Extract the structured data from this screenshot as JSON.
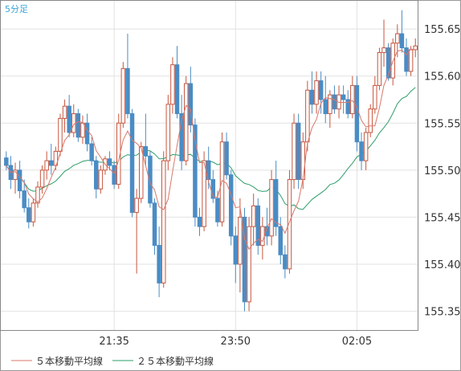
{
  "chart_data": {
    "type": "candlestick",
    "period_label": "5分足",
    "ylim": [
      155.33,
      155.68
    ],
    "y_ticks": [
      "155.35",
      "155.40",
      "155.45",
      "155.50",
      "155.55",
      "155.60",
      "155.65"
    ],
    "x_tick_labels": [
      "21:35",
      "23:50",
      "02:05"
    ],
    "x_tick_bar_index": [
      24,
      51,
      78
    ],
    "up_color": "#c8563e",
    "down_color": "#4a8cc4",
    "grid": true,
    "legend_position": "bottom",
    "series": [
      {
        "name": "５本移動平均線",
        "color": "#d9776a",
        "period": 5
      },
      {
        "name": "２５本移動平均線",
        "color": "#2e9e6a",
        "period": 25
      }
    ],
    "candles": [
      [
        155.513,
        155.52,
        155.5,
        155.505
      ],
      [
        155.505,
        155.515,
        155.48,
        155.49
      ],
      [
        155.49,
        155.508,
        155.475,
        155.5
      ],
      [
        155.5,
        155.51,
        155.47,
        155.478
      ],
      [
        155.478,
        155.49,
        155.455,
        155.46
      ],
      [
        155.46,
        155.47,
        155.438,
        155.445
      ],
      [
        155.445,
        155.47,
        155.44,
        155.465
      ],
      [
        155.465,
        155.488,
        155.46,
        155.482
      ],
      [
        155.482,
        155.505,
        155.475,
        155.5
      ],
      [
        155.5,
        155.52,
        155.49,
        155.51
      ],
      [
        155.51,
        155.528,
        155.495,
        155.505
      ],
      [
        155.505,
        155.525,
        155.5,
        155.52
      ],
      [
        155.52,
        155.56,
        155.515,
        155.555
      ],
      [
        155.555,
        155.575,
        155.54,
        155.568
      ],
      [
        155.568,
        155.58,
        155.535,
        155.54
      ],
      [
        155.54,
        155.57,
        155.535,
        155.56
      ],
      [
        155.56,
        155.565,
        155.53,
        155.535
      ],
      [
        155.535,
        155.558,
        155.528,
        155.55
      ],
      [
        155.55,
        155.56,
        155.52,
        155.528
      ],
      [
        155.528,
        155.535,
        155.505,
        155.51
      ],
      [
        155.51,
        155.515,
        155.47,
        155.48
      ],
      [
        155.48,
        155.505,
        155.475,
        155.5
      ],
      [
        155.5,
        155.515,
        155.495,
        155.512
      ],
      [
        155.512,
        155.52,
        155.5,
        155.505
      ],
      [
        155.505,
        155.51,
        155.48,
        155.485
      ],
      [
        155.485,
        155.56,
        155.48,
        155.55
      ],
      [
        155.55,
        155.615,
        155.545,
        155.608
      ],
      [
        155.608,
        155.645,
        155.555,
        155.56
      ],
      [
        155.56,
        155.565,
        155.45,
        155.455
      ],
      [
        155.455,
        155.48,
        155.39,
        155.47
      ],
      [
        155.47,
        155.53,
        155.465,
        155.525
      ],
      [
        155.525,
        155.56,
        155.505,
        155.515
      ],
      [
        155.515,
        155.52,
        155.46,
        155.465
      ],
      [
        155.465,
        155.47,
        155.41,
        155.42
      ],
      [
        155.42,
        155.44,
        155.365,
        155.38
      ],
      [
        155.38,
        155.52,
        155.375,
        155.51
      ],
      [
        155.51,
        155.58,
        155.5,
        155.57
      ],
      [
        155.57,
        155.62,
        155.56,
        155.612
      ],
      [
        155.612,
        155.632,
        155.555,
        155.56
      ],
      [
        155.56,
        155.58,
        155.5,
        155.51
      ],
      [
        155.51,
        155.6,
        155.505,
        155.592
      ],
      [
        155.592,
        155.61,
        155.54,
        155.548
      ],
      [
        155.548,
        155.555,
        155.44,
        155.45
      ],
      [
        155.45,
        155.46,
        155.43,
        155.44
      ],
      [
        155.44,
        155.52,
        155.435,
        155.51
      ],
      [
        155.51,
        155.525,
        155.48,
        155.49
      ],
      [
        155.49,
        155.5,
        155.465,
        155.47
      ],
      [
        155.47,
        155.478,
        155.44,
        155.445
      ],
      [
        155.445,
        155.54,
        155.44,
        155.53
      ],
      [
        155.53,
        155.54,
        155.49,
        155.495
      ],
      [
        155.495,
        155.5,
        155.42,
        155.43
      ],
      [
        155.43,
        155.44,
        155.38,
        155.4
      ],
      [
        155.4,
        155.47,
        155.37,
        155.45
      ],
      [
        155.45,
        155.46,
        155.35,
        155.36
      ],
      [
        155.36,
        155.45,
        155.35,
        155.44
      ],
      [
        155.44,
        155.475,
        155.42,
        155.462
      ],
      [
        155.462,
        155.47,
        155.41,
        155.42
      ],
      [
        155.42,
        155.45,
        155.405,
        155.44
      ],
      [
        155.44,
        155.46,
        155.42,
        155.43
      ],
      [
        155.43,
        155.5,
        155.42,
        155.49
      ],
      [
        155.49,
        155.51,
        155.43,
        155.44
      ],
      [
        155.44,
        155.45,
        155.4,
        155.41
      ],
      [
        155.41,
        155.42,
        155.385,
        155.395
      ],
      [
        155.395,
        155.5,
        155.39,
        155.49
      ],
      [
        155.49,
        155.56,
        155.48,
        155.55
      ],
      [
        155.55,
        155.56,
        155.48,
        155.49
      ],
      [
        155.49,
        155.54,
        155.48,
        155.53
      ],
      [
        155.53,
        155.595,
        155.52,
        155.585
      ],
      [
        155.585,
        155.605,
        155.56,
        155.57
      ],
      [
        155.57,
        155.605,
        155.56,
        155.595
      ],
      [
        155.595,
        155.605,
        155.56,
        155.575
      ],
      [
        155.575,
        155.6,
        155.55,
        155.56
      ],
      [
        155.56,
        155.585,
        155.545,
        155.58
      ],
      [
        155.58,
        155.59,
        155.56,
        155.565
      ],
      [
        155.565,
        155.59,
        155.555,
        155.58
      ],
      [
        155.58,
        155.59,
        155.56,
        155.575
      ],
      [
        155.575,
        155.585,
        155.555,
        155.56
      ],
      [
        155.56,
        155.6,
        155.555,
        155.59
      ],
      [
        155.59,
        155.6,
        155.52,
        155.53
      ],
      [
        155.53,
        155.54,
        155.5,
        155.51
      ],
      [
        155.51,
        155.545,
        155.5,
        155.54
      ],
      [
        155.54,
        155.57,
        155.535,
        155.565
      ],
      [
        155.565,
        155.6,
        155.56,
        155.59
      ],
      [
        155.59,
        155.63,
        155.585,
        155.625
      ],
      [
        155.625,
        155.66,
        155.61,
        155.63
      ],
      [
        155.63,
        155.635,
        155.595,
        155.598
      ],
      [
        155.598,
        155.64,
        155.59,
        155.635
      ],
      [
        155.635,
        155.655,
        155.62,
        155.645
      ],
      [
        155.645,
        155.67,
        155.625,
        155.63
      ],
      [
        155.63,
        155.64,
        155.6,
        155.605
      ],
      [
        155.605,
        155.632,
        155.6,
        155.628
      ],
      [
        155.628,
        155.64,
        155.62,
        155.632
      ]
    ]
  },
  "legend": {
    "ma5_label": "５本移動平均線",
    "ma25_label": "２５本移動平均線"
  }
}
